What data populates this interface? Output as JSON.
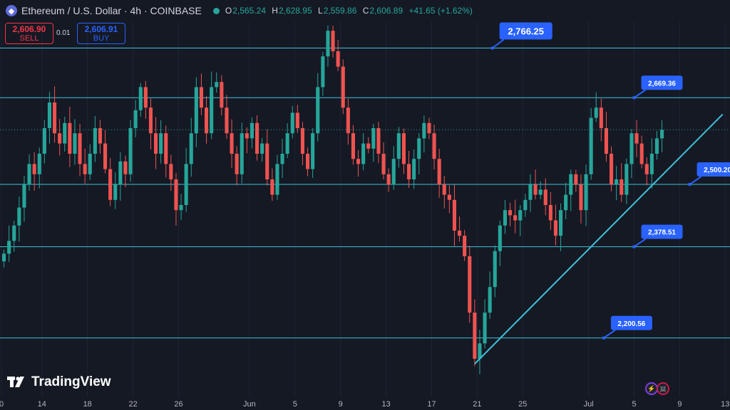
{
  "header": {
    "title": "Ethereum / U.S. Dollar · 4h · COINBASE",
    "open_label": "O",
    "open": "2,565.24",
    "high_label": "H",
    "high": "2,628.95",
    "low_label": "L",
    "low": "2,559.86",
    "close_label": "C",
    "close": "2,606.89",
    "change": "+41.65 (+1.62%)"
  },
  "trade": {
    "sell_price": "2,606.90",
    "sell_label": "SELL",
    "spread": "0.01",
    "buy_price": "2,606.91",
    "buy_label": "BUY"
  },
  "branding": {
    "logo_text": "TradingView"
  },
  "colors": {
    "background": "#151924",
    "up": "#26a69a",
    "down": "#ef5350",
    "level_line": "#3fc1d9",
    "label_bg": "#2962ff",
    "grid": "#1f2433"
  },
  "chart_data": {
    "type": "candlestick",
    "symbol": "ETHUSD",
    "interval": "4h",
    "exchange": "COINBASE",
    "x_ticks": [
      "0",
      "14",
      "18",
      "22",
      "26",
      "Jun",
      "5",
      "9",
      "13",
      "17",
      "21",
      "25",
      "Jul",
      "5",
      "9",
      "13"
    ],
    "x_tick_positions_bars": [
      0,
      8,
      17,
      26,
      35,
      49,
      58,
      67,
      76,
      85,
      94,
      103,
      116,
      125,
      134,
      143
    ],
    "ylim": [
      2060,
      2860
    ],
    "levels": [
      {
        "value": 2766.25,
        "label": "2,766.25",
        "big": true,
        "label_bar": 97
      },
      {
        "value": 2669.36,
        "label": "2,669.36",
        "label_bar": 125
      },
      {
        "value": 2500.2,
        "label": "2,500.20",
        "label_bar": 136
      },
      {
        "value": 2378.51,
        "label": "2,378.51",
        "label_bar": 125
      },
      {
        "value": 2200.56,
        "label": "2,200.56",
        "label_bar": 119
      }
    ],
    "trendline": {
      "from": {
        "bar": 93.5,
        "value": 2150
      },
      "to": {
        "bar": 142.5,
        "value": 2637
      }
    },
    "current_price": 2606.89,
    "closes": [
      2365,
      2390,
      2420,
      2455,
      2500,
      2540,
      2520,
      2560,
      2610,
      2660,
      2600,
      2580,
      2620,
      2560,
      2600,
      2540,
      2520,
      2560,
      2610,
      2580,
      2530,
      2470,
      2500,
      2545,
      2520,
      2610,
      2645,
      2690,
      2650,
      2600,
      2560,
      2600,
      2540,
      2510,
      2450,
      2460,
      2540,
      2600,
      2690,
      2650,
      2600,
      2690,
      2700,
      2650,
      2600,
      2560,
      2520,
      2600,
      2590,
      2620,
      2560,
      2580,
      2510,
      2480,
      2540,
      2560,
      2600,
      2640,
      2610,
      2560,
      2530,
      2600,
      2690,
      2750,
      2800,
      2760,
      2730,
      2650,
      2600,
      2550,
      2540,
      2580,
      2570,
      2610,
      2560,
      2520,
      2500,
      2550,
      2600,
      2540,
      2510,
      2550,
      2590,
      2620,
      2600,
      2550,
      2500,
      2480,
      2470,
      2410,
      2400,
      2360,
      2250,
      2160,
      2190,
      2250,
      2300,
      2370,
      2420,
      2450,
      2440,
      2430,
      2450,
      2470,
      2500,
      2480,
      2490,
      2460,
      2430,
      2400,
      2450,
      2480,
      2520,
      2500,
      2450,
      2520,
      2630,
      2650,
      2610,
      2560,
      2500,
      2510,
      2480,
      2540,
      2600,
      2580,
      2540,
      2520,
      2560,
      2590,
      2606.89
    ]
  }
}
